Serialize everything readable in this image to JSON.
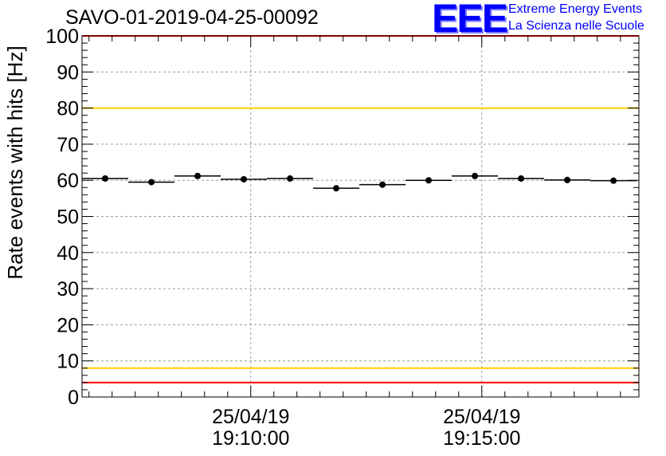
{
  "chart_data": {
    "type": "scatter",
    "title": "SAVO-01-2019-04-25-00092",
    "xlabel": "",
    "ylabel": "Rate events with hits [Hz]",
    "ylim": [
      0,
      100
    ],
    "y_ticks": [
      "0",
      "10",
      "20",
      "30",
      "40",
      "50",
      "60",
      "70",
      "80",
      "90",
      "100"
    ],
    "x_ticks": [
      {
        "date": "25/04/19",
        "time": "19:10:00",
        "minutes": 10
      },
      {
        "date": "25/04/19",
        "time": "19:15:00",
        "minutes": 15
      }
    ],
    "xlim_minutes": [
      6.35,
      18.4
    ],
    "bin_width_minutes": 1,
    "x_minutes": [
      6.85,
      7.85,
      8.85,
      9.85,
      10.85,
      11.85,
      12.85,
      13.85,
      14.85,
      15.85,
      16.85,
      17.85
    ],
    "values": [
      60.5,
      59.5,
      61.2,
      60.3,
      60.5,
      57.8,
      58.8,
      60.0,
      61.2,
      60.5,
      60.1,
      59.9
    ],
    "reference_lines": [
      {
        "y": 100,
        "color": "#ff0000"
      },
      {
        "y": 80,
        "color": "#ffcc00"
      },
      {
        "y": 8,
        "color": "#ffcc00"
      },
      {
        "y": 4,
        "color": "#ff0000"
      }
    ],
    "grid": true
  },
  "logo": {
    "mark": "EEE",
    "line1": "Extreme Energy Events",
    "line2": "La Scienza nelle Scuole",
    "color": "#0000ff"
  }
}
